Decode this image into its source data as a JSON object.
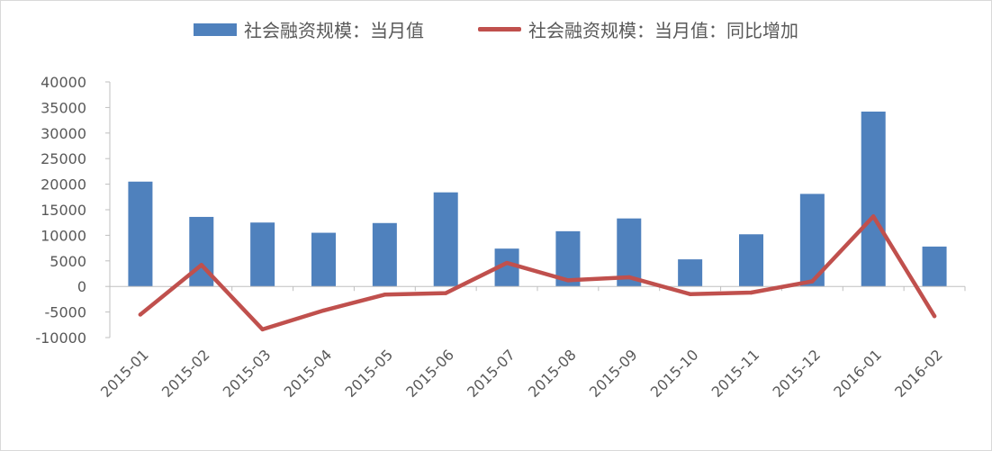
{
  "chart_data": {
    "type": "bar",
    "categories": [
      "2015-01",
      "2015-02",
      "2015-03",
      "2015-04",
      "2015-05",
      "2015-06",
      "2015-07",
      "2015-08",
      "2015-09",
      "2015-10",
      "2015-11",
      "2015-12",
      "2016-01",
      "2016-02"
    ],
    "series": [
      {
        "name": "社会融资规模：当月值",
        "type": "bar",
        "color": "#4f81bd",
        "values": [
          20500,
          13600,
          12500,
          10500,
          12400,
          18400,
          7400,
          10800,
          13300,
          5300,
          10200,
          18100,
          34200,
          7800
        ]
      },
      {
        "name": "社会融资规模：当月值：同比增加",
        "type": "line",
        "color": "#c0504d",
        "values": [
          -5500,
          4200,
          -8400,
          -4700,
          -1600,
          -1300,
          4600,
          1200,
          1800,
          -1500,
          -1200,
          1000,
          13700,
          -5800
        ]
      }
    ],
    "ylim": [
      -10000,
      40000
    ],
    "yticks": [
      "40000",
      "35000",
      "30000",
      "25000",
      "20000",
      "15000",
      "10000",
      "5000",
      "0",
      "-5000",
      "-10000"
    ],
    "legend_position": "top",
    "grid": false
  }
}
